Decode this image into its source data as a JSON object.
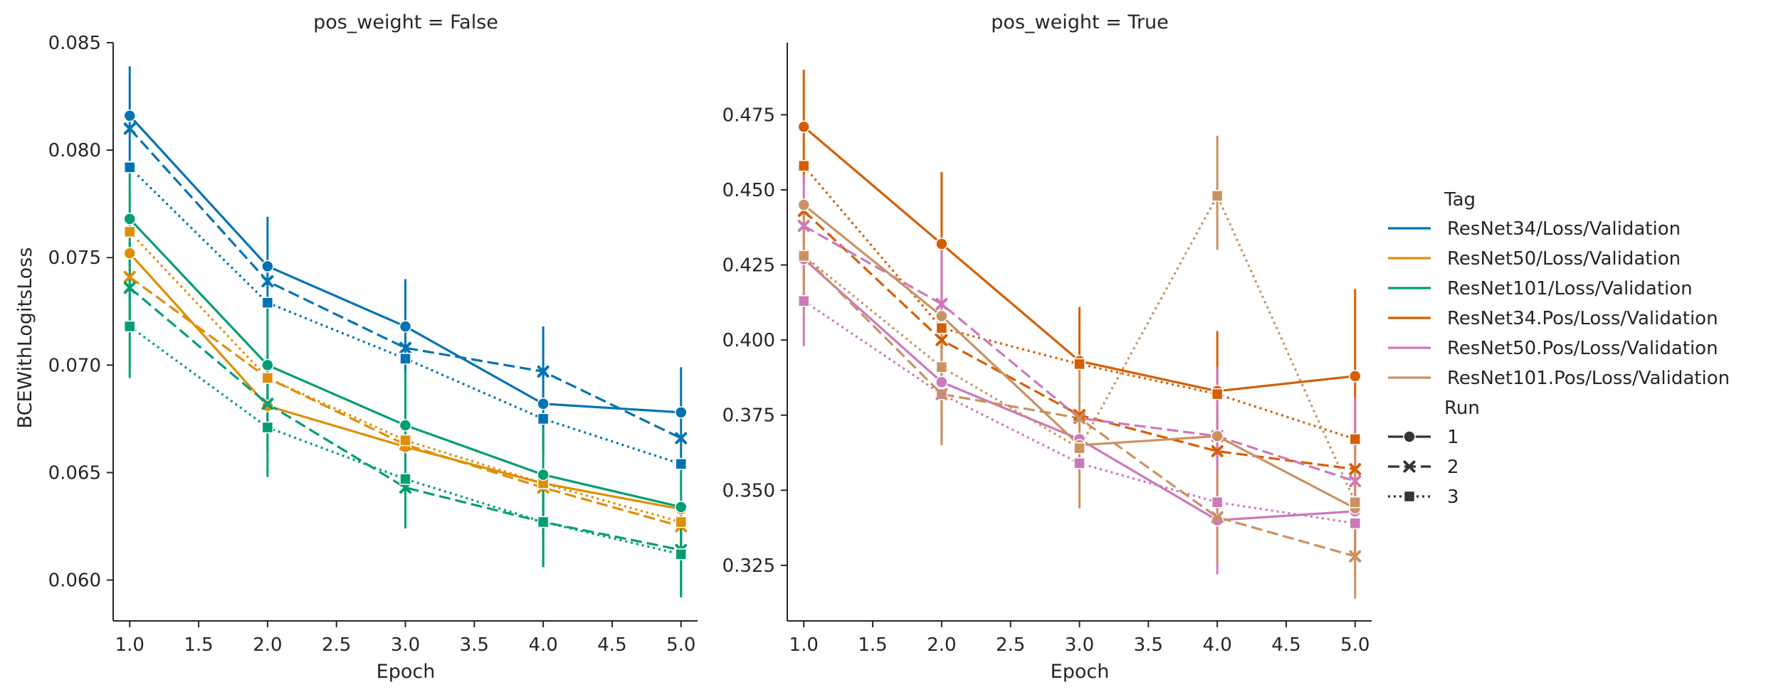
{
  "chart_data": [
    {
      "type": "line",
      "title": "pos_weight = False",
      "xlabel": "Epoch",
      "ylabel": "BCEWithLogitsLoss",
      "xlim": [
        0.88,
        5.12
      ],
      "ylim": [
        0.0581,
        0.085
      ],
      "xticks": [
        "1.0",
        "1.5",
        "2.0",
        "2.5",
        "3.0",
        "3.5",
        "4.0",
        "4.5",
        "5.0"
      ],
      "yticks": [
        "0.060",
        "0.065",
        "0.070",
        "0.075",
        "0.080",
        "0.085"
      ],
      "x": [
        1,
        2,
        3,
        4,
        5
      ],
      "series": [
        {
          "tag": "ResNet34/Loss/Validation",
          "run": "1",
          "values": [
            0.0816,
            0.0746,
            0.0718,
            0.0682,
            0.0678
          ],
          "err": [
            [
              0.0795,
              0.0839
            ],
            [
              0.0724,
              0.0769
            ],
            [
              0.0697,
              0.074
            ],
            [
              0.066,
              0.0718
            ],
            [
              0.0657,
              0.0699
            ]
          ]
        },
        {
          "tag": "ResNet34/Loss/Validation",
          "run": "2",
          "values": [
            0.081,
            0.0739,
            0.0708,
            0.0697,
            0.0666
          ]
        },
        {
          "tag": "ResNet34/Loss/Validation",
          "run": "3",
          "values": [
            0.0792,
            0.0729,
            0.0703,
            0.0675,
            0.0654
          ]
        },
        {
          "tag": "ResNet50/Loss/Validation",
          "run": "1",
          "values": [
            0.0752,
            0.0681,
            0.0662,
            0.0645,
            0.0633
          ]
        },
        {
          "tag": "ResNet50/Loss/Validation",
          "run": "2",
          "values": [
            0.0741,
            0.0694,
            0.0663,
            0.0643,
            0.0625
          ]
        },
        {
          "tag": "ResNet50/Loss/Validation",
          "run": "3",
          "values": [
            0.0762,
            0.0694,
            0.0665,
            0.0645,
            0.0627
          ]
        },
        {
          "tag": "ResNet101/Loss/Validation",
          "run": "1",
          "values": [
            0.0768,
            0.07,
            0.0672,
            0.0649,
            0.0634
          ],
          "err": [
            [
              0.0745,
              0.0791
            ],
            [
              0.067,
              0.0729
            ],
            [
              0.0645,
              0.0697
            ],
            [
              0.0626,
              0.0671
            ],
            [
              0.0611,
              0.0657
            ]
          ]
        },
        {
          "tag": "ResNet101/Loss/Validation",
          "run": "2",
          "values": [
            0.0736,
            0.0682,
            0.0643,
            0.0627,
            0.0614
          ],
          "err": [
            [
              0.0715,
              0.0757
            ],
            [
              0.066,
              0.0705
            ],
            [
              0.0624,
              0.0665
            ],
            [
              0.0606,
              0.065
            ],
            [
              0.0592,
              0.0636
            ]
          ]
        },
        {
          "tag": "ResNet101/Loss/Validation",
          "run": "3",
          "values": [
            0.0718,
            0.0671,
            0.0647,
            0.0627,
            0.0612
          ],
          "err": [
            [
              0.0694,
              0.0741
            ],
            [
              0.0648,
              0.0694
            ],
            [
              0.0625,
              0.067
            ],
            [
              0.0606,
              0.065
            ],
            [
              0.0592,
              0.0634
            ]
          ]
        }
      ]
    },
    {
      "type": "line",
      "title": "pos_weight = True",
      "xlabel": "Epoch",
      "ylabel": "",
      "xlim": [
        0.88,
        5.12
      ],
      "ylim": [
        0.3065,
        0.499
      ],
      "xticks": [
        "1.0",
        "1.5",
        "2.0",
        "2.5",
        "3.0",
        "3.5",
        "4.0",
        "4.5",
        "5.0"
      ],
      "yticks": [
        "0.325",
        "0.350",
        "0.375",
        "0.400",
        "0.425",
        "0.450",
        "0.475"
      ],
      "x": [
        1,
        2,
        3,
        4,
        5
      ],
      "series": [
        {
          "tag": "ResNet34.Pos/Loss/Validation",
          "run": "1",
          "values": [
            0.471,
            0.432,
            0.393,
            0.383,
            0.388
          ],
          "err": [
            [
              0.452,
              0.49
            ],
            [
              0.408,
              0.456
            ],
            [
              0.374,
              0.411
            ],
            [
              0.362,
              0.403
            ],
            [
              0.36,
              0.417
            ]
          ]
        },
        {
          "tag": "ResNet34.Pos/Loss/Validation",
          "run": "2",
          "values": [
            0.443,
            0.4,
            0.375,
            0.363,
            0.357
          ]
        },
        {
          "tag": "ResNet34.Pos/Loss/Validation",
          "run": "3",
          "values": [
            0.458,
            0.404,
            0.392,
            0.382,
            0.367
          ]
        },
        {
          "tag": "ResNet50.Pos/Loss/Validation",
          "run": "1",
          "values": [
            0.427,
            0.386,
            0.367,
            0.34,
            0.343
          ]
        },
        {
          "tag": "ResNet50.Pos/Loss/Validation",
          "run": "2",
          "values": [
            0.438,
            0.412,
            0.374,
            0.368,
            0.353
          ],
          "err": [
            [
              0.42,
              0.455
            ],
            [
              0.392,
              0.432
            ],
            [
              0.356,
              0.392
            ],
            [
              0.345,
              0.391
            ],
            [
              0.327,
              0.381
            ]
          ]
        },
        {
          "tag": "ResNet50.Pos/Loss/Validation",
          "run": "3",
          "values": [
            0.413,
            0.382,
            0.359,
            0.346,
            0.339
          ],
          "err": [
            [
              0.398,
              0.428
            ],
            [
              0.366,
              0.398
            ],
            [
              0.344,
              0.374
            ],
            [
              0.322,
              0.369
            ],
            [
              0.322,
              0.357
            ]
          ]
        },
        {
          "tag": "ResNet101.Pos/Loss/Validation",
          "run": "1",
          "values": [
            0.445,
            0.408,
            0.365,
            0.368,
            0.344
          ]
        },
        {
          "tag": "ResNet101.Pos/Loss/Validation",
          "run": "2",
          "values": [
            0.428,
            0.382,
            0.374,
            0.341,
            0.328
          ],
          "err": [
            [
              0.41,
              0.446
            ],
            [
              0.365,
              0.399
            ],
            [
              0.358,
              0.391
            ],
            [
              0.326,
              0.357
            ],
            [
              0.314,
              0.343
            ]
          ]
        },
        {
          "tag": "ResNet101.Pos/Loss/Validation",
          "run": "3",
          "values": [
            0.428,
            0.391,
            0.364,
            0.448,
            0.346
          ],
          "err": [
            [
              0.41,
              0.446
            ],
            [
              0.373,
              0.409
            ],
            [
              0.344,
              0.383
            ],
            [
              0.43,
              0.468
            ],
            [
              0.329,
              0.364
            ]
          ]
        }
      ]
    }
  ],
  "legend": {
    "placement": "right",
    "tag_title": "Tag",
    "tags": [
      {
        "label": "ResNet34/Loss/Validation",
        "color": "#0173b2"
      },
      {
        "label": "ResNet50/Loss/Validation",
        "color": "#de8f05"
      },
      {
        "label": "ResNet101/Loss/Validation",
        "color": "#029e73"
      },
      {
        "label": "ResNet34.Pos/Loss/Validation",
        "color": "#d55e00"
      },
      {
        "label": "ResNet50.Pos/Loss/Validation",
        "color": "#cc78bc"
      },
      {
        "label": "ResNet101.Pos/Loss/Validation",
        "color": "#ca9161"
      }
    ],
    "run_title": "Run",
    "runs": [
      {
        "label": "1",
        "marker": "circle",
        "dash": "solid"
      },
      {
        "label": "2",
        "marker": "x",
        "dash": "dashed"
      },
      {
        "label": "3",
        "marker": "square",
        "dash": "dotted"
      }
    ]
  }
}
